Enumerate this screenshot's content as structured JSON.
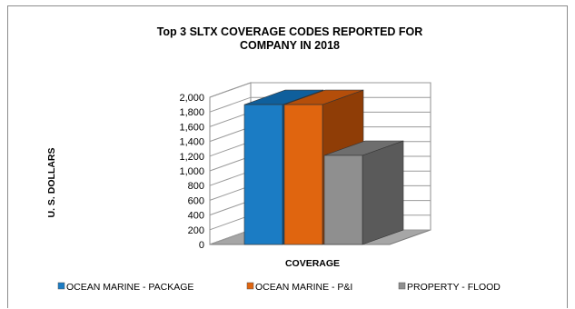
{
  "chart_data": {
    "type": "bar",
    "title": [
      "Top 3 SLTX COVERAGE CODES REPORTED FOR",
      "COMPANY IN 2018"
    ],
    "xlabel": "COVERAGE",
    "ylabel": "U. S. DOLLARS",
    "ylim": [
      0,
      2000
    ],
    "yticks": [
      0,
      200,
      400,
      600,
      800,
      1000,
      1200,
      1400,
      1600,
      1800,
      2000
    ],
    "ytick_labels": [
      "0",
      "200",
      "400",
      "600",
      "800",
      "1,000",
      "1,200",
      "1,400",
      "1,600",
      "1,800",
      "2,000"
    ],
    "grid": true,
    "three_d": true,
    "legend_position": "bottom",
    "series": [
      {
        "name": "OCEAN MARINE - PACKAGE",
        "value": 1900,
        "color": "#1b7cc4",
        "top_color": "#0f5f9c",
        "side_color": "#0c4f82"
      },
      {
        "name": "OCEAN MARINE - P&I",
        "value": 1900,
        "color": "#e0650f",
        "top_color": "#b44e0a",
        "side_color": "#8f3d06"
      },
      {
        "name": "PROPERTY - FLOOD",
        "value": 1210,
        "color": "#8f8f8f",
        "top_color": "#6e6e6e",
        "side_color": "#5a5a5a"
      }
    ]
  }
}
